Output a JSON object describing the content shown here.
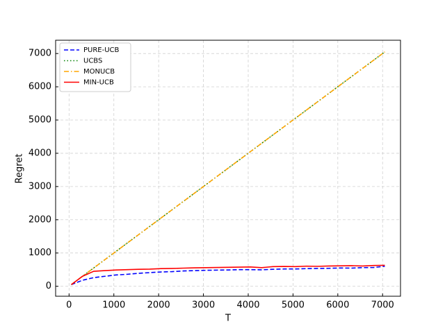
{
  "chart_data": {
    "type": "line",
    "x_label": "T",
    "y_label": "Regret",
    "x": [
      50,
      300,
      550,
      800,
      1050,
      1300,
      1550,
      1800,
      2050,
      2300,
      2550,
      2800,
      3050,
      3300,
      3550,
      3800,
      4050,
      4300,
      4550,
      4800,
      5050,
      5300,
      5550,
      5800,
      6050,
      6300,
      6550,
      6800,
      7050
    ],
    "series": [
      {
        "name": "PURE-UCB",
        "color": "#0000ff",
        "linestyle": "--",
        "values": [
          50,
          180,
          260,
          300,
          340,
          360,
          390,
          410,
          430,
          440,
          460,
          470,
          480,
          485,
          490,
          500,
          500,
          495,
          510,
          520,
          520,
          530,
          535,
          540,
          550,
          545,
          560,
          565,
          600
        ]
      },
      {
        "name": "UCBS",
        "color": "#008000",
        "linestyle": ":",
        "values": [
          50,
          300,
          550,
          800,
          1050,
          1300,
          1550,
          1800,
          2050,
          2300,
          2550,
          2800,
          3050,
          3300,
          3550,
          3800,
          4050,
          4300,
          4550,
          4800,
          5050,
          5300,
          5550,
          5800,
          6050,
          6300,
          6550,
          6800,
          7050
        ]
      },
      {
        "name": "MONUCB",
        "color": "#ffa500",
        "linestyle": "-.",
        "values": [
          50,
          300,
          550,
          800,
          1050,
          1300,
          1550,
          1800,
          2050,
          2300,
          2550,
          2800,
          3050,
          3300,
          3550,
          3800,
          4050,
          4300,
          4550,
          4800,
          5050,
          5300,
          5550,
          5800,
          6050,
          6300,
          6550,
          6800,
          7050
        ]
      },
      {
        "name": "MIN-UCB",
        "color": "#ff0000",
        "linestyle": "-",
        "values": [
          50,
          300,
          450,
          470,
          490,
          500,
          510,
          515,
          530,
          535,
          545,
          555,
          560,
          565,
          570,
          575,
          580,
          560,
          590,
          595,
          590,
          605,
          600,
          610,
          615,
          620,
          610,
          625,
          630
        ]
      }
    ],
    "xlim": [
      -300,
      7400
    ],
    "ylim": [
      -300,
      7400
    ],
    "xticks": [
      0,
      1000,
      2000,
      3000,
      4000,
      5000,
      6000,
      7000
    ],
    "yticks": [
      0,
      1000,
      2000,
      3000,
      4000,
      5000,
      6000,
      7000
    ],
    "grid": true,
    "legend": "upper-left"
  }
}
